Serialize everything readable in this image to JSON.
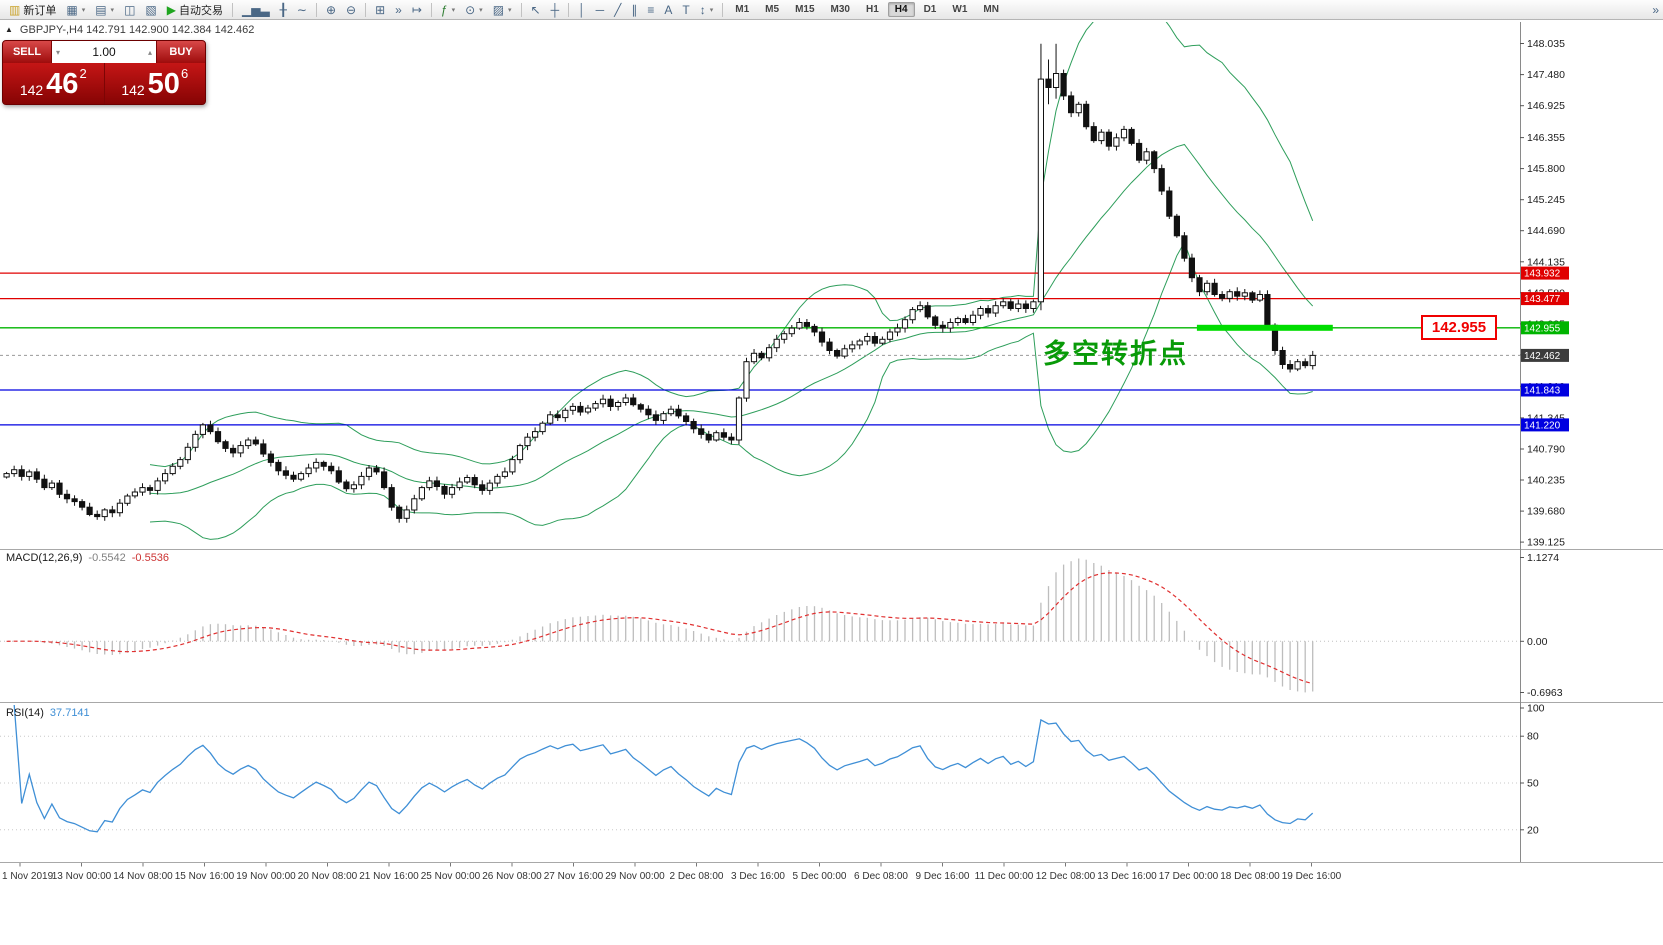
{
  "toolbar": {
    "buttons": [
      {
        "name": "new-order-button",
        "glyph": "▥",
        "glyph_color": "#c9a227",
        "label": "新订单"
      },
      {
        "name": "new-chart-icon",
        "glyph": "▦",
        "caret": true
      },
      {
        "name": "profiles-icon",
        "glyph": "▤",
        "caret": true
      },
      {
        "name": "market-watch-icon",
        "glyph": "◫"
      },
      {
        "name": "data-window-icon",
        "glyph": "▧"
      },
      {
        "name": "autotrading-button",
        "glyph": "▶",
        "glyph_color": "#1fa51f",
        "label": "自动交易"
      },
      {
        "sep": true
      },
      {
        "name": "bar-chart-icon",
        "glyph": "▁▅▃"
      },
      {
        "name": "candlestick-icon",
        "glyph": "╂"
      },
      {
        "name": "line-chart-icon",
        "glyph": "∼"
      },
      {
        "sep": true
      },
      {
        "name": "zoom-in-icon",
        "glyph": "⊕"
      },
      {
        "name": "zoom-out-icon",
        "glyph": "⊖"
      },
      {
        "sep": true
      },
      {
        "name": "tile-windows-icon",
        "glyph": "⊞"
      },
      {
        "name": "auto-scroll-icon",
        "glyph": "»"
      },
      {
        "name": "chart-shift-icon",
        "glyph": "↦"
      },
      {
        "sep": true
      },
      {
        "name": "indicators-icon",
        "glyph": "ƒ",
        "glyph_color": "#2e7d32",
        "caret": true
      },
      {
        "name": "periods-icon",
        "glyph": "⊙",
        "caret": true
      },
      {
        "name": "templates-icon",
        "glyph": "▨",
        "caret": true
      },
      {
        "sep": true
      },
      {
        "name": "cursor-icon",
        "glyph": "↖"
      },
      {
        "name": "crosshair-icon",
        "glyph": "┼"
      },
      {
        "sep": true
      },
      {
        "name": "vertical-line-icon",
        "glyph": "│"
      },
      {
        "name": "horizontal-line-icon",
        "glyph": "─"
      },
      {
        "name": "trendline-icon",
        "glyph": "╱"
      },
      {
        "name": "channel-icon",
        "glyph": "∥"
      },
      {
        "name": "fibonacci-icon",
        "glyph": "≡"
      },
      {
        "name": "text-icon",
        "glyph": "A"
      },
      {
        "name": "label-icon",
        "glyph": "T"
      },
      {
        "name": "arrows-icon",
        "glyph": "↕",
        "caret": true
      },
      {
        "sep": true
      }
    ],
    "timeframes": [
      "M1",
      "M5",
      "M15",
      "M30",
      "H1",
      "H4",
      "D1",
      "W1",
      "MN"
    ],
    "active_timeframe": "H4",
    "overflow_glyph": "»"
  },
  "chart": {
    "caption": "GBPJPY-,H4  142.791 142.900 142.384 142.462",
    "collapse_glyph": "▲"
  },
  "trade_panel": {
    "sell_label": "SELL",
    "buy_label": "BUY",
    "volume": "1.00",
    "vol_down_glyph": "▾",
    "vol_up_glyph": "▴",
    "sell_main": "142",
    "sell_big": "46",
    "sell_sup": "2",
    "buy_main": "142",
    "buy_big": "50",
    "buy_sup": "6"
  },
  "annotations": {
    "turning_point": "多空转折点",
    "price_tag": "142.955"
  },
  "chart_data": {
    "type": "candlestick-with-indicators",
    "symbol": "GBPJPY-",
    "timeframe": "H4",
    "current_bar": {
      "open": 142.791,
      "high": 142.9,
      "low": 142.384,
      "close": 142.462
    },
    "price_axis_ticks": [
      148.035,
      147.48,
      146.925,
      146.355,
      145.8,
      145.245,
      144.69,
      144.135,
      143.58,
      143.025,
      142.47,
      141.91,
      141.345,
      140.79,
      140.235,
      139.68,
      139.125
    ],
    "hlines": [
      {
        "price": 143.932,
        "label": "143.932",
        "color": "#e00000"
      },
      {
        "price": 143.477,
        "label": "143.477",
        "color": "#e00000"
      },
      {
        "price": 142.955,
        "label": "142.955",
        "color": "#00b400"
      },
      {
        "price": 141.843,
        "label": "141.843",
        "color": "#0000e0"
      },
      {
        "price": 141.22,
        "label": "141.220",
        "color": "#0000e0"
      }
    ],
    "current_price": {
      "value": 142.462,
      "label": "142.462",
      "label_bg": "#3c3c3c"
    },
    "highlight_segment": {
      "price": 142.955,
      "from_bar": 158,
      "to_bar": 176,
      "color": "#00dd00"
    },
    "candle_up_color": "#ffffff",
    "candle_down_color": "#111111",
    "closes": [
      140.35,
      140.42,
      140.3,
      140.38,
      140.25,
      140.1,
      140.18,
      139.98,
      139.9,
      139.85,
      139.75,
      139.62,
      139.58,
      139.7,
      139.65,
      139.82,
      139.95,
      140.02,
      140.1,
      140.05,
      140.22,
      140.35,
      140.48,
      140.6,
      140.82,
      141.05,
      141.22,
      141.1,
      140.92,
      140.8,
      140.72,
      140.85,
      140.95,
      140.88,
      140.7,
      140.55,
      140.4,
      140.32,
      140.25,
      140.35,
      140.45,
      140.55,
      140.48,
      140.4,
      140.2,
      140.08,
      140.15,
      140.3,
      140.45,
      140.38,
      140.1,
      139.75,
      139.55,
      139.7,
      139.9,
      140.1,
      140.22,
      140.12,
      139.98,
      140.1,
      140.2,
      140.28,
      140.15,
      140.05,
      140.18,
      140.3,
      140.38,
      140.6,
      140.85,
      141.0,
      141.1,
      141.25,
      141.4,
      141.35,
      141.48,
      141.55,
      141.45,
      141.52,
      141.6,
      141.68,
      141.55,
      141.62,
      141.7,
      141.58,
      141.5,
      141.4,
      141.3,
      141.42,
      141.5,
      141.38,
      141.28,
      141.15,
      141.05,
      140.95,
      141.08,
      141.0,
      140.95,
      141.7,
      142.35,
      142.5,
      142.42,
      142.6,
      142.75,
      142.85,
      142.95,
      143.05,
      142.98,
      142.88,
      142.7,
      142.55,
      142.45,
      142.58,
      142.65,
      142.72,
      142.8,
      142.68,
      142.75,
      142.88,
      142.95,
      143.1,
      143.28,
      143.35,
      143.15,
      143.0,
      142.95,
      143.05,
      143.12,
      143.05,
      143.18,
      143.3,
      143.22,
      143.35,
      143.42,
      143.3,
      143.38,
      143.3,
      143.42,
      147.4,
      147.25,
      147.5,
      147.1,
      146.8,
      146.95,
      146.55,
      146.3,
      146.45,
      146.2,
      146.35,
      146.5,
      146.25,
      145.95,
      146.1,
      145.8,
      145.4,
      144.95,
      144.6,
      144.2,
      143.85,
      143.6,
      143.75,
      143.55,
      143.48,
      143.6,
      143.52,
      143.58,
      143.45,
      143.55,
      143.0,
      142.55,
      142.3,
      142.22,
      142.35,
      142.28,
      142.462
    ],
    "wick_overrides": {
      "137": [
        0.63,
        0.15
      ],
      "138": [
        0.35,
        0.3
      ],
      "139": [
        0.53,
        0.2
      ]
    },
    "bollinger": {
      "period": 20,
      "deviation": 2,
      "color": "#2e9e5b"
    },
    "macd": {
      "name": "MACD(12,26,9)",
      "value_main": "-0.5542",
      "value_signal": "-0.5536",
      "axis": [
        "1.1274",
        "0.00",
        "-0.6963"
      ],
      "target_max": 1.1274,
      "target_min": -0.6963,
      "hist_color": "#bdbdbd",
      "signal_color": "#e03030"
    },
    "rsi": {
      "name": "RSI(14)",
      "value": "37.7141",
      "period": 14,
      "levels": [
        80,
        50,
        20
      ],
      "axis_ticks": [
        100,
        80,
        50,
        20
      ],
      "line_color": "#3f8fd6"
    },
    "time_labels": [
      "1 Nov 2019",
      "13 Nov 00:00",
      "14 Nov 08:00",
      "15 Nov 16:00",
      "19 Nov 00:00",
      "20 Nov 08:00",
      "21 Nov 16:00",
      "25 Nov 00:00",
      "26 Nov 08:00",
      "27 Nov 16:00",
      "29 Nov 00:00",
      "2 Dec 08:00",
      "3 Dec 16:00",
      "5 Dec 00:00",
      "6 Dec 08:00",
      "9 Dec 16:00",
      "11 Dec 00:00",
      "12 Dec 08:00",
      "13 Dec 16:00",
      "17 Dec 00:00",
      "18 Dec 08:00",
      "19 Dec 16:00"
    ]
  }
}
